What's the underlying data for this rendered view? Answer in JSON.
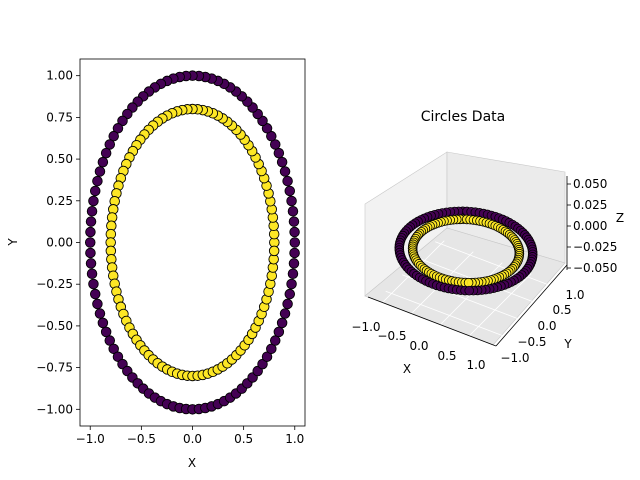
{
  "chart_data": [
    {
      "type": "scatter",
      "title": "",
      "xlabel": "X",
      "ylabel": "Y",
      "xlim": [
        -1.1,
        1.1
      ],
      "ylim": [
        -1.1,
        1.1
      ],
      "xticks": [
        "−1.0",
        "−0.5",
        "0.0",
        "0.5",
        "1.0"
      ],
      "xtick_values": [
        -1.0,
        -0.5,
        0.0,
        0.5,
        1.0
      ],
      "yticks": [
        "−1.00",
        "−0.75",
        "−0.50",
        "−0.25",
        "0.00",
        "0.25",
        "0.50",
        "0.75",
        "1.00"
      ],
      "ytick_values": [
        -1.0,
        -0.75,
        -0.5,
        -0.25,
        0.0,
        0.25,
        0.5,
        0.75,
        1.0
      ],
      "grid": false,
      "series": [
        {
          "radius": 1.0,
          "points": 100,
          "color": "#440154"
        },
        {
          "radius": 0.8,
          "points": 100,
          "color": "#fde725"
        }
      ]
    },
    {
      "type": "scatter",
      "title": "Circles Data",
      "xlabel": "X",
      "ylabel": "Y",
      "zlabel": "Z",
      "xticks": [
        "−1.0",
        "−0.5",
        "0.0",
        "0.5",
        "1.0"
      ],
      "yticks": [
        "−1.0",
        "−0.5",
        "0.0",
        "0.5",
        "1.0"
      ],
      "zticks": [
        "−0.050",
        "−0.025",
        "0.000",
        "0.025",
        "0.050"
      ],
      "zlim": [
        -0.06,
        0.06
      ],
      "series": [
        {
          "radius": 1.0,
          "z": 0,
          "points": 100,
          "color": "#440154"
        },
        {
          "radius": 0.8,
          "z": 0,
          "points": 100,
          "color": "#fde725"
        }
      ]
    }
  ]
}
